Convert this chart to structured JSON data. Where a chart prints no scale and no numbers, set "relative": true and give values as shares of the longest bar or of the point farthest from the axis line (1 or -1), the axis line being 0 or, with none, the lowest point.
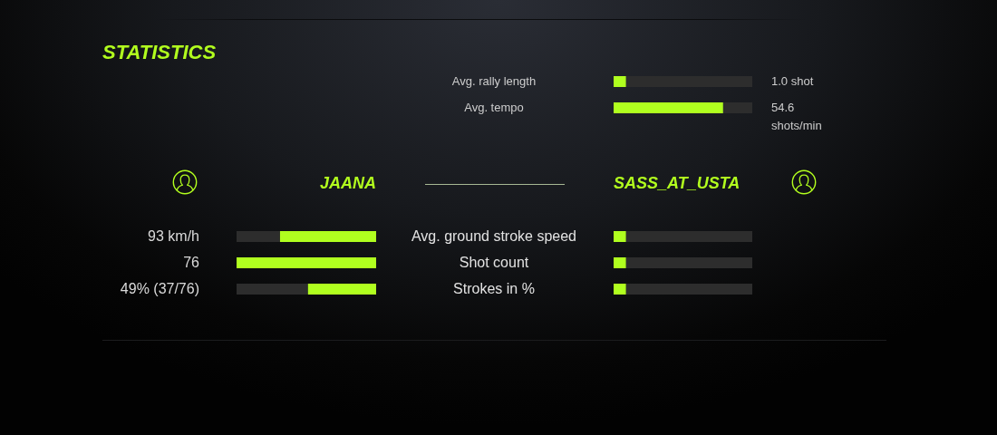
{
  "chart_data": [
    {
      "type": "other",
      "title": "STATISTICS"
    },
    {
      "type": "bar",
      "orientation": "horizontal",
      "stacked": true,
      "relative": true,
      "categories": [
        "Avg. rally length",
        "Avg. tempo"
      ],
      "series": [
        {
          "color": "#b0ff1f",
          "values": [
            0.09,
            0.79
          ]
        },
        {
          "color": "#2d2d2d",
          "values": [
            0.91,
            0.21
          ]
        }
      ],
      "annotations": [
        "1.0 shot",
        "54.6 shots/min"
      ]
    },
    {
      "type": "other",
      "annotations": [
        "JAANA",
        "SASS_AT_USTA"
      ]
    },
    {
      "type": "bar",
      "orientation": "horizontal",
      "stacked": true,
      "relative": true,
      "categories": [
        "Avg. ground stroke speed",
        "Shot count",
        "Strokes in %"
      ],
      "series": [
        {
          "color": "#b0ff1f",
          "values": [
            0.69,
            1,
            0.49
          ]
        },
        {
          "color": "#2d2d2d",
          "values": [
            0.31,
            0,
            0.51
          ]
        }
      ],
      "annotations": [
        "93 km/h",
        "76",
        "49% (37/76)"
      ]
    },
    {
      "type": "bar",
      "orientation": "horizontal",
      "stacked": true,
      "relative": true,
      "categories": [
        null,
        null,
        null
      ],
      "series": [
        {
          "color": "#b0ff1f",
          "values": [
            0.09,
            0.09,
            0.09
          ]
        },
        {
          "color": "#2d2d2d",
          "values": [
            0.91,
            0.91,
            0.91
          ]
        }
      ]
    }
  ]
}
